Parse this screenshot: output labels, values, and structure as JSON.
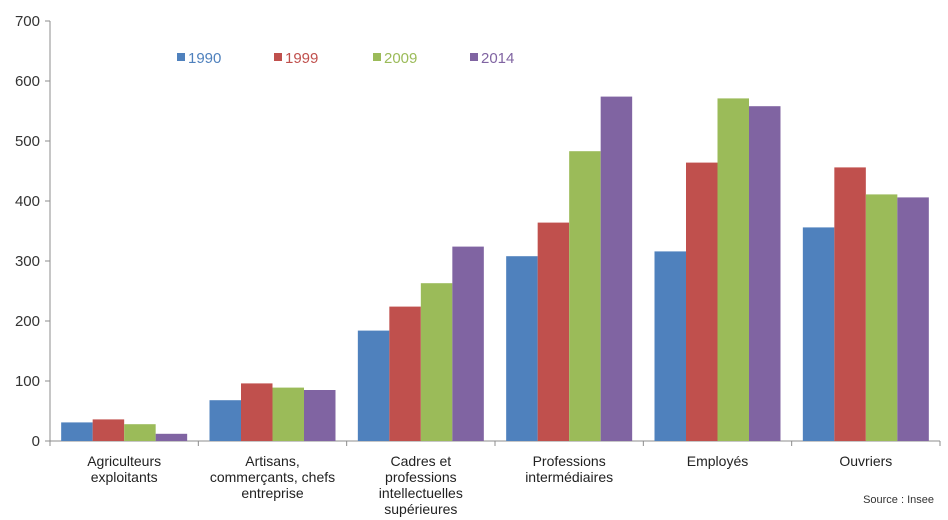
{
  "chart_data": {
    "type": "bar",
    "categories": [
      [
        "Agriculteurs",
        "exploitants"
      ],
      [
        "Artisans,",
        "commerçants, chefs",
        "entreprise"
      ],
      [
        "Cadres et",
        "professions",
        "intellectuelles",
        "supérieures"
      ],
      [
        "Professions",
        "intermédiaires"
      ],
      [
        "Employés"
      ],
      [
        "Ouvriers"
      ]
    ],
    "series": [
      {
        "name": "1990",
        "color": "#4F81BD",
        "values": [
          31,
          68,
          184,
          308,
          316,
          356
        ]
      },
      {
        "name": "1999",
        "color": "#C0504D",
        "values": [
          36,
          96,
          224,
          364,
          464,
          456
        ]
      },
      {
        "name": "2009",
        "color": "#9BBB59",
        "values": [
          28,
          89,
          263,
          483,
          571,
          411
        ]
      },
      {
        "name": "2014",
        "color": "#8064A2",
        "values": [
          12,
          85,
          324,
          574,
          558,
          406
        ]
      }
    ],
    "yticks": [
      "0",
      "100",
      "200",
      "300",
      "400",
      "500",
      "600",
      "700"
    ],
    "ylim": [
      0,
      700
    ],
    "grid": false,
    "legend": "top-left",
    "source": "Source : Insee"
  }
}
